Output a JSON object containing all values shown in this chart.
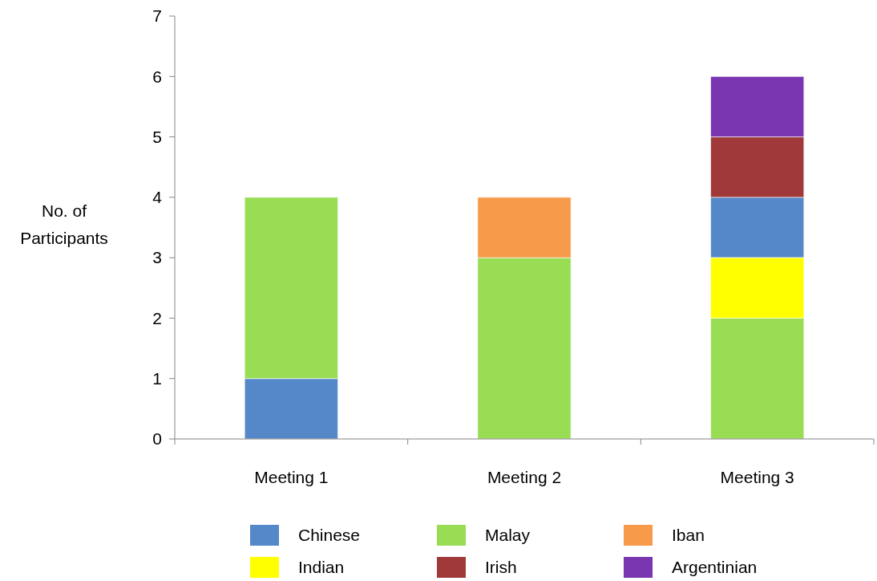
{
  "chart_data": {
    "type": "bar",
    "categories": [
      "Meeting 1",
      "Meeting 2",
      "Meeting 3"
    ],
    "ylabel": "No. of Participants",
    "ylim": [
      0,
      7
    ],
    "yticks": [
      0,
      1,
      2,
      3,
      4,
      5,
      6,
      7
    ],
    "legend": "bottom",
    "series": [
      {
        "name": "Chinese",
        "color": "#5588c8",
        "values": [
          1,
          null,
          1
        ],
        "base": [
          0,
          null,
          3
        ]
      },
      {
        "name": "Malay",
        "color": "#99dd55",
        "values": [
          3,
          3,
          2
        ],
        "base": [
          1,
          0,
          0
        ]
      },
      {
        "name": "Iban",
        "color": "#f79a4a",
        "values": [
          null,
          1,
          null
        ],
        "base": [
          null,
          3,
          null
        ]
      },
      {
        "name": "Indian",
        "color": "#ffff00",
        "values": [
          null,
          null,
          1
        ],
        "base": [
          null,
          null,
          2
        ]
      },
      {
        "name": "Irish",
        "color": "#a03a3a",
        "values": [
          null,
          null,
          1
        ],
        "base": [
          null,
          null,
          4
        ]
      },
      {
        "name": "Argentinian",
        "color": "#7a35b0",
        "values": [
          null,
          null,
          1
        ],
        "base": [
          null,
          null,
          5
        ]
      }
    ]
  }
}
